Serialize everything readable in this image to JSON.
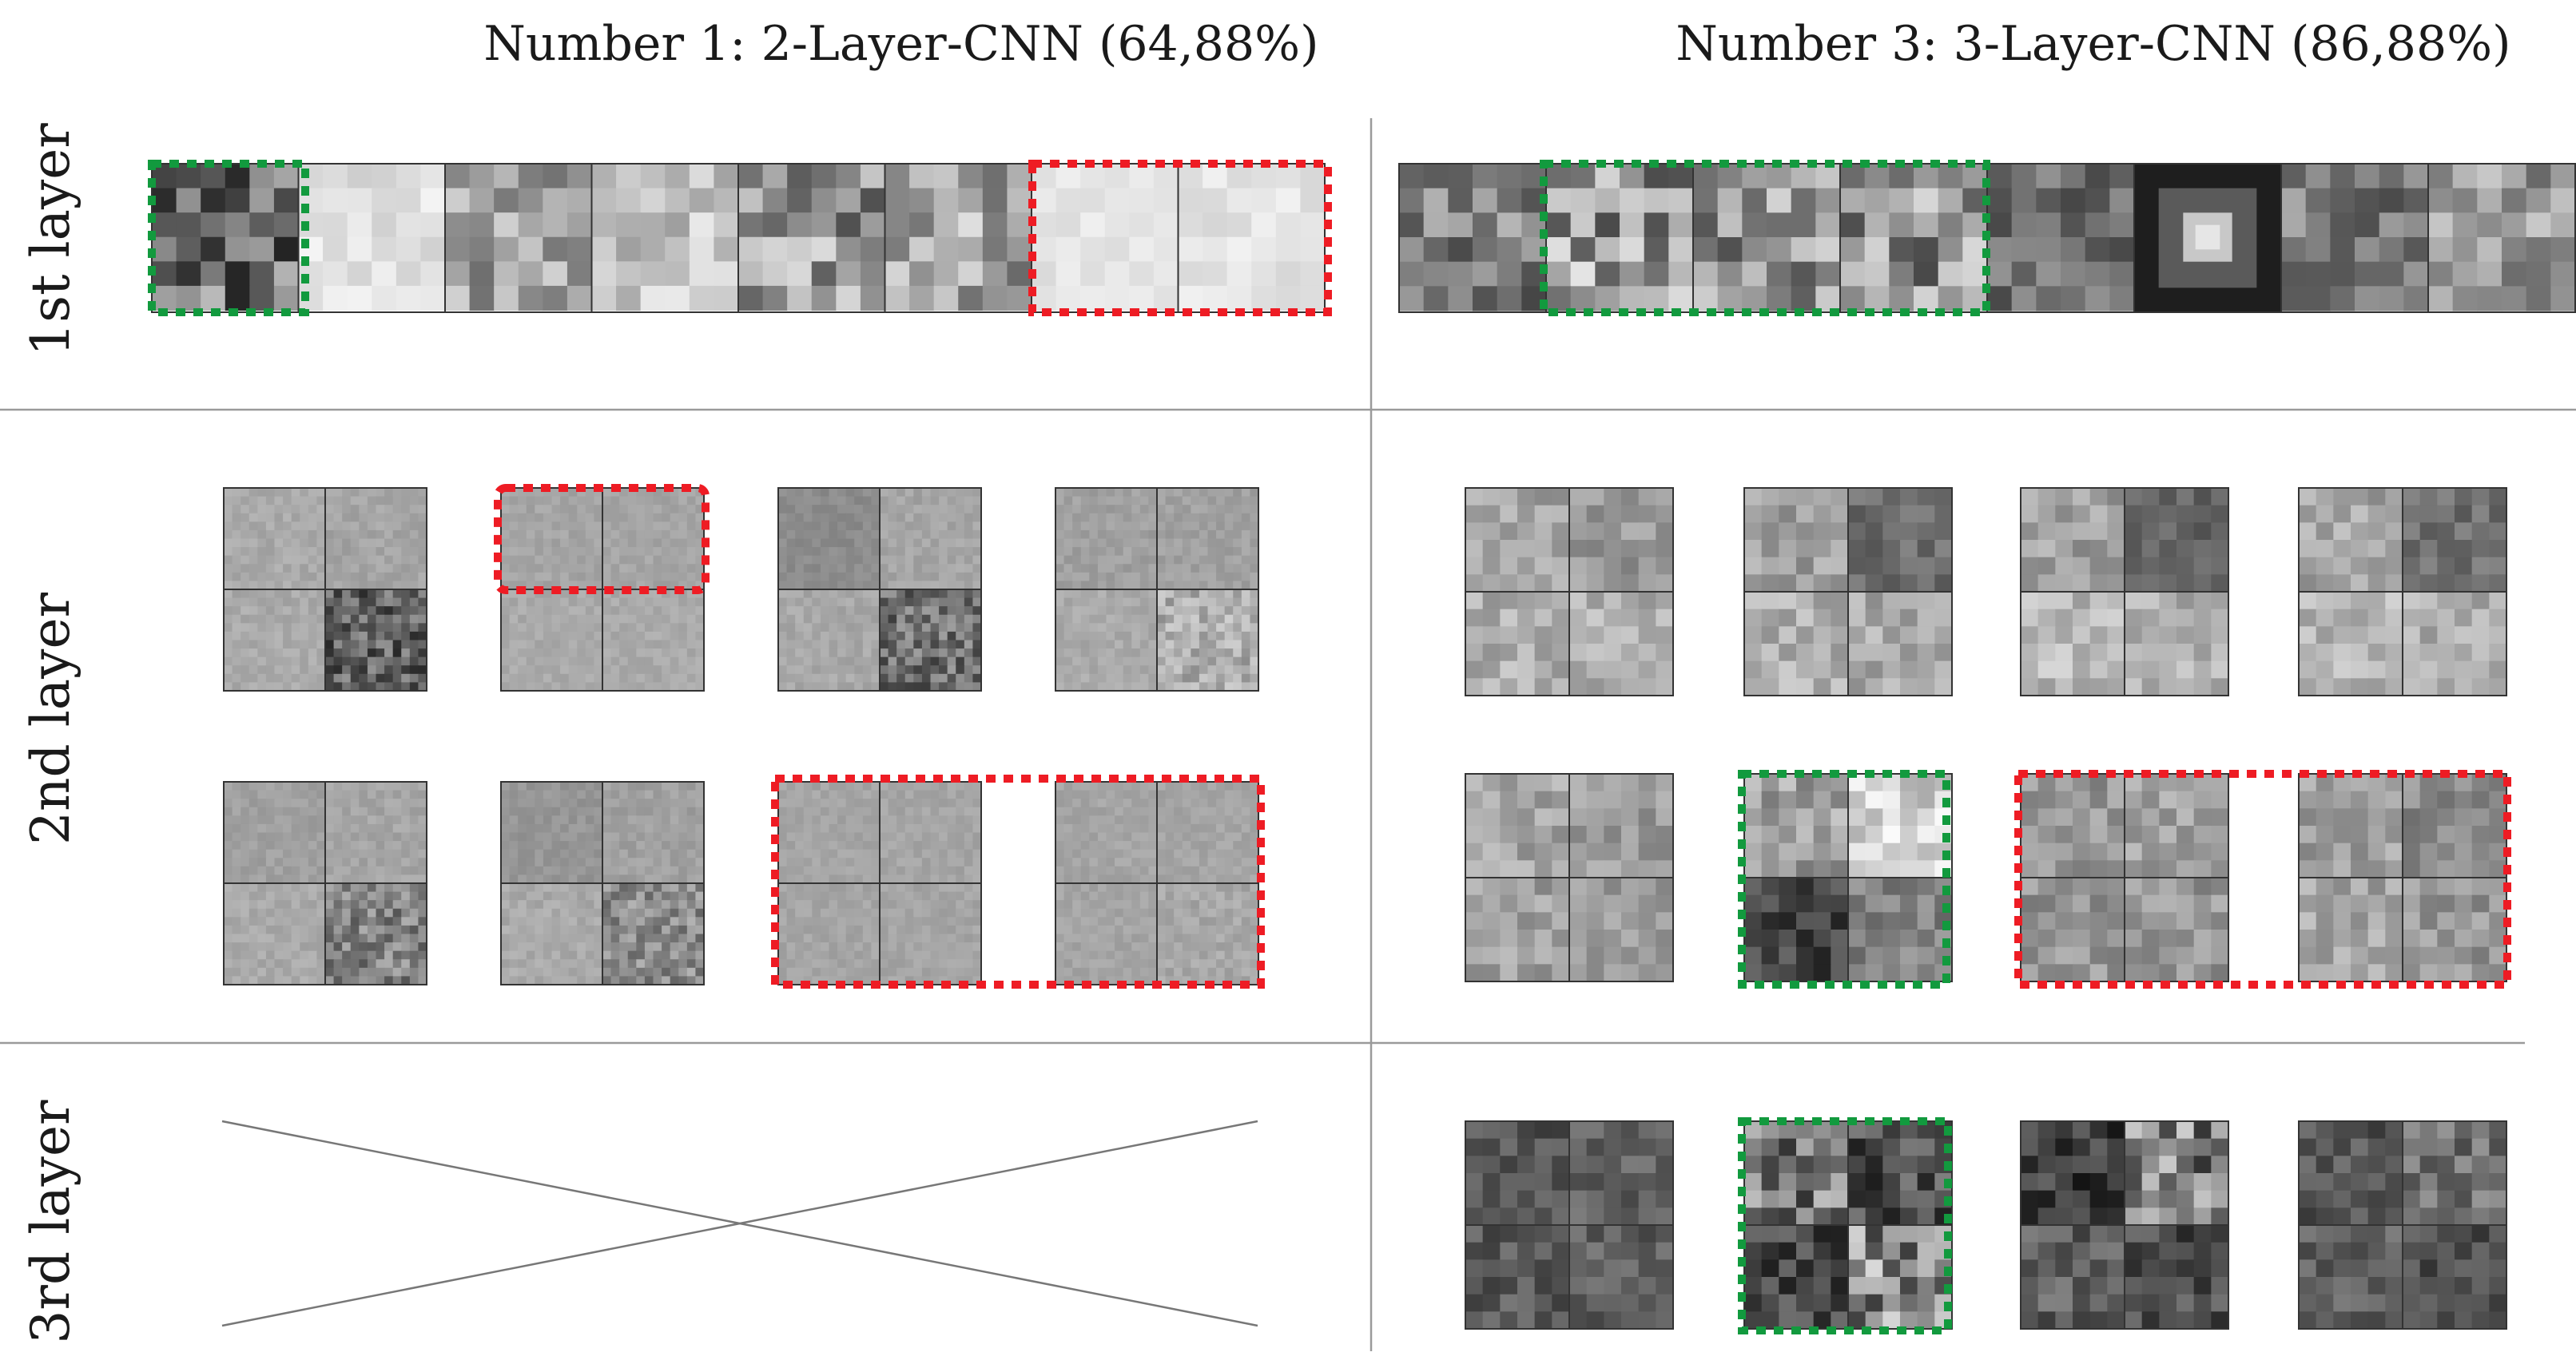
{
  "columns": {
    "left_title": "Number 1: 2-Layer-CNN (64,88%)",
    "right_title": "Number 3: 3-Layer-CNN (86,88%)"
  },
  "rows": {
    "layer1": "1st layer",
    "layer2": "2nd layer",
    "layer3": "3rd layer"
  },
  "colors": {
    "grid_line": "#9a9a9a",
    "filter_border": "#333333",
    "highlight_green": "#129a3e",
    "highlight_red": "#ee1c24"
  },
  "panels": {
    "model1_layer1": {
      "filters": 8,
      "kernel": "6x6",
      "tone": "light"
    },
    "model3_layer1": {
      "filters": 8,
      "kernel": "6x6",
      "tone": "mixed"
    },
    "model1_layer2": {
      "filters": 8,
      "kernel": "2x2 blocks of 12x12",
      "tone": "light"
    },
    "model3_layer2": {
      "filters": 8,
      "kernel": "2x2 blocks of 6x6",
      "tone": "light"
    },
    "model1_layer3": {
      "filters": 0,
      "crossed_out": true
    },
    "model3_layer3": {
      "filters": 4,
      "kernel": "2x2 blocks of 6x6",
      "tone": "dark"
    }
  },
  "highlights": {
    "green": [
      "model1_layer1 filter 1",
      "model3_layer1 filters 2-4",
      "model3_layer2 filter 6",
      "model3_layer3 filter 2"
    ],
    "red": [
      "model1_layer1 filters 7-8",
      "model1_layer2 filter 2 top half",
      "model1_layer2 filters 7-8",
      "model3_layer2 filters 7-8"
    ]
  }
}
